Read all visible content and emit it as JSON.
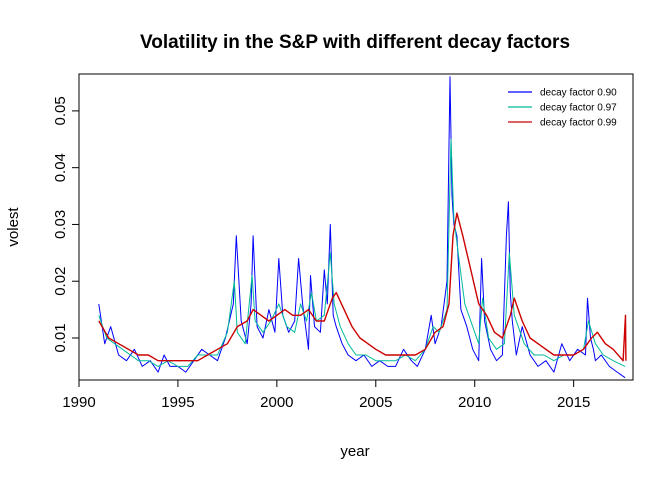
{
  "chart_data": {
    "type": "line",
    "title": "Volatility in the S&P with different decay factors",
    "xlabel": "year",
    "ylabel": "volest",
    "xlim": [
      1990,
      2018
    ],
    "ylim": [
      0.0026,
      0.0565
    ],
    "x_ticks": [
      1990,
      1995,
      2000,
      2005,
      2010,
      2015
    ],
    "x_tick_labels": [
      "1990",
      "1995",
      "2000",
      "2005",
      "2010",
      "2015"
    ],
    "y_ticks": [
      0.01,
      0.02,
      0.03,
      0.04,
      0.05
    ],
    "y_tick_labels": [
      "0.01",
      "0.02",
      "0.03",
      "0.04",
      "0.05"
    ],
    "grid": false,
    "legend_position": "top-right",
    "series": [
      {
        "name": "decay factor 0.90",
        "color": "#0000ff",
        "x": [
          1991.0,
          1991.3,
          1991.6,
          1992.0,
          1992.4,
          1992.8,
          1993.2,
          1993.6,
          1994.0,
          1994.3,
          1994.6,
          1995.0,
          1995.4,
          1995.8,
          1996.2,
          1996.6,
          1997.0,
          1997.4,
          1997.6,
          1997.8,
          1997.95,
          1998.2,
          1998.5,
          1998.7,
          1998.8,
          1999.0,
          1999.3,
          1999.6,
          1999.9,
          2000.1,
          2000.3,
          2000.6,
          2000.9,
          2001.1,
          2001.3,
          2001.6,
          2001.7,
          2001.9,
          2002.2,
          2002.4,
          2002.55,
          2002.7,
          2002.85,
          2003.0,
          2003.3,
          2003.6,
          2004.0,
          2004.4,
          2004.8,
          2005.2,
          2005.6,
          2006.0,
          2006.4,
          2006.8,
          2007.1,
          2007.5,
          2007.8,
          2008.0,
          2008.3,
          2008.6,
          2008.75,
          2008.85,
          2008.95,
          2009.1,
          2009.3,
          2009.6,
          2009.9,
          2010.2,
          2010.35,
          2010.5,
          2010.8,
          2011.1,
          2011.4,
          2011.6,
          2011.7,
          2011.8,
          2011.9,
          2012.1,
          2012.4,
          2012.8,
          2013.2,
          2013.6,
          2014.0,
          2014.4,
          2014.8,
          2015.2,
          2015.6,
          2015.7,
          2015.85,
          2016.0,
          2016.1,
          2016.4,
          2016.8,
          2017.2,
          2017.6
        ],
        "values": [
          0.016,
          0.009,
          0.012,
          0.007,
          0.006,
          0.008,
          0.005,
          0.006,
          0.004,
          0.007,
          0.005,
          0.005,
          0.004,
          0.006,
          0.008,
          0.007,
          0.006,
          0.01,
          0.013,
          0.016,
          0.028,
          0.013,
          0.009,
          0.016,
          0.028,
          0.012,
          0.01,
          0.015,
          0.011,
          0.024,
          0.014,
          0.011,
          0.013,
          0.024,
          0.016,
          0.008,
          0.021,
          0.012,
          0.011,
          0.022,
          0.016,
          0.03,
          0.014,
          0.012,
          0.009,
          0.007,
          0.006,
          0.007,
          0.005,
          0.006,
          0.005,
          0.005,
          0.008,
          0.006,
          0.005,
          0.008,
          0.014,
          0.009,
          0.012,
          0.02,
          0.056,
          0.035,
          0.03,
          0.028,
          0.015,
          0.012,
          0.008,
          0.006,
          0.024,
          0.013,
          0.008,
          0.006,
          0.007,
          0.028,
          0.034,
          0.018,
          0.013,
          0.007,
          0.012,
          0.007,
          0.005,
          0.006,
          0.004,
          0.009,
          0.006,
          0.008,
          0.007,
          0.017,
          0.01,
          0.008,
          0.006,
          0.007,
          0.005,
          0.004,
          0.003
        ]
      },
      {
        "name": "decay factor 0.97",
        "color": "#00bb99",
        "x": [
          1991.0,
          1991.4,
          1991.8,
          1992.2,
          1992.6,
          1993.0,
          1993.5,
          1994.0,
          1994.5,
          1995.0,
          1995.5,
          1996.0,
          1996.5,
          1997.0,
          1997.5,
          1997.85,
          1998.0,
          1998.4,
          1998.75,
          1998.9,
          1999.3,
          1999.7,
          2000.1,
          2000.5,
          2000.9,
          2001.2,
          2001.5,
          2001.75,
          2002.0,
          2002.4,
          2002.7,
          2002.9,
          2003.2,
          2003.6,
          2004.0,
          2004.5,
          2005.0,
          2005.5,
          2006.0,
          2006.5,
          2007.0,
          2007.5,
          2007.9,
          2008.2,
          2008.6,
          2008.8,
          2008.95,
          2009.2,
          2009.5,
          2009.9,
          2010.2,
          2010.4,
          2010.7,
          2011.1,
          2011.5,
          2011.75,
          2012.0,
          2012.5,
          2013.0,
          2013.5,
          2014.0,
          2014.5,
          2015.0,
          2015.5,
          2015.75,
          2016.1,
          2016.5,
          2017.0,
          2017.6
        ],
        "values": [
          0.014,
          0.01,
          0.009,
          0.008,
          0.007,
          0.006,
          0.006,
          0.005,
          0.006,
          0.005,
          0.005,
          0.007,
          0.007,
          0.007,
          0.011,
          0.02,
          0.011,
          0.009,
          0.021,
          0.013,
          0.011,
          0.013,
          0.016,
          0.012,
          0.011,
          0.016,
          0.013,
          0.018,
          0.013,
          0.014,
          0.025,
          0.016,
          0.012,
          0.009,
          0.007,
          0.007,
          0.006,
          0.006,
          0.006,
          0.007,
          0.006,
          0.008,
          0.012,
          0.011,
          0.015,
          0.045,
          0.031,
          0.024,
          0.016,
          0.012,
          0.009,
          0.017,
          0.01,
          0.008,
          0.009,
          0.025,
          0.014,
          0.009,
          0.007,
          0.007,
          0.006,
          0.007,
          0.007,
          0.008,
          0.013,
          0.009,
          0.007,
          0.006,
          0.005
        ]
      },
      {
        "name": "decay factor 0.99",
        "color": "#cc0000",
        "x": [
          1991.0,
          1991.5,
          1992.0,
          1992.5,
          1993.0,
          1993.5,
          1994.0,
          1994.5,
          1995.0,
          1995.5,
          1996.0,
          1996.5,
          1997.0,
          1997.5,
          1998.0,
          1998.5,
          1998.8,
          1999.2,
          1999.6,
          2000.0,
          2000.4,
          2000.8,
          2001.2,
          2001.6,
          2002.0,
          2002.4,
          2002.8,
          2003.0,
          2003.4,
          2003.8,
          2004.2,
          2004.6,
          2005.0,
          2005.5,
          2006.0,
          2006.5,
          2007.0,
          2007.5,
          2008.0,
          2008.4,
          2008.7,
          2008.9,
          2009.1,
          2009.4,
          2009.8,
          2010.2,
          2010.6,
          2011.0,
          2011.4,
          2011.8,
          2012.0,
          2012.4,
          2012.8,
          2013.2,
          2013.6,
          2014.0,
          2014.5,
          2015.0,
          2015.5,
          2015.9,
          2016.2,
          2016.6,
          2017.0,
          2017.5,
          2017.62,
          2017.64
        ],
        "values": [
          0.013,
          0.01,
          0.009,
          0.008,
          0.007,
          0.007,
          0.006,
          0.006,
          0.006,
          0.006,
          0.006,
          0.007,
          0.008,
          0.009,
          0.012,
          0.013,
          0.015,
          0.014,
          0.013,
          0.014,
          0.015,
          0.014,
          0.014,
          0.015,
          0.013,
          0.013,
          0.017,
          0.018,
          0.015,
          0.012,
          0.01,
          0.009,
          0.008,
          0.007,
          0.007,
          0.007,
          0.007,
          0.008,
          0.011,
          0.012,
          0.016,
          0.028,
          0.032,
          0.028,
          0.022,
          0.016,
          0.014,
          0.011,
          0.01,
          0.014,
          0.017,
          0.013,
          0.01,
          0.009,
          0.008,
          0.007,
          0.007,
          0.007,
          0.008,
          0.01,
          0.011,
          0.009,
          0.008,
          0.006,
          0.014,
          0.006
        ]
      }
    ]
  }
}
